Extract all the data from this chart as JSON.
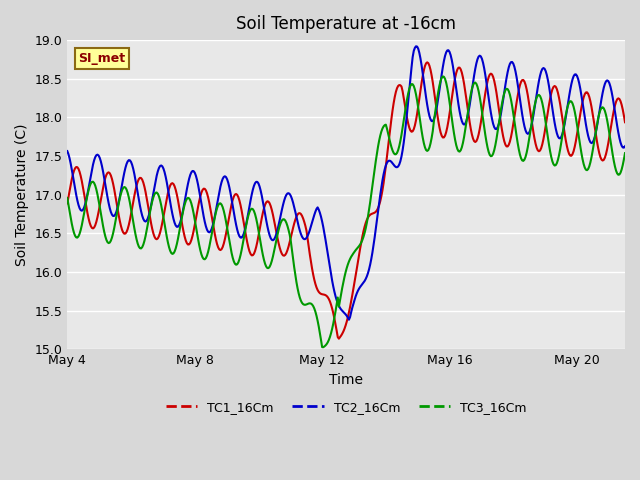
{
  "title": "Soil Temperature at -16cm",
  "xlabel": "Time",
  "ylabel": "Soil Temperature (C)",
  "ylim": [
    15.0,
    19.0
  ],
  "yticks": [
    15.0,
    15.5,
    16.0,
    16.5,
    17.0,
    17.5,
    18.0,
    18.5,
    19.0
  ],
  "fig_bg_color": "#d8d8d8",
  "plot_bg_color": "#e8e8e8",
  "grid_color": "#ffffff",
  "annotation_text": "SI_met",
  "annotation_color": "#8b0000",
  "annotation_bg": "#ffff99",
  "annotation_border": "#8b6914",
  "xlim": [
    0,
    17.5
  ],
  "xtick_positions": [
    0,
    4,
    8,
    12,
    16
  ],
  "xtick_labels": [
    "May 4",
    "May 8",
    "May 12",
    "May 16",
    "May 20"
  ],
  "series": {
    "TC1_16Cm": {
      "color": "#cc0000",
      "lw": 1.5
    },
    "TC2_16Cm": {
      "color": "#0000cc",
      "lw": 1.5
    },
    "TC3_16Cm": {
      "color": "#009900",
      "lw": 1.5
    }
  }
}
